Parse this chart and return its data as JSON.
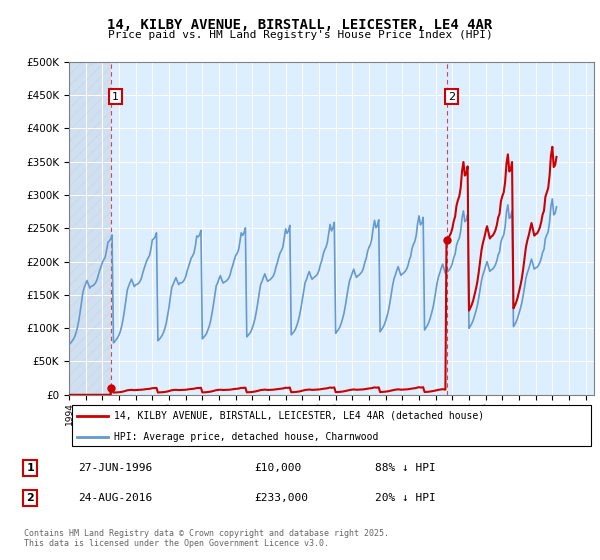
{
  "title": "14, KILBY AVENUE, BIRSTALL, LEICESTER, LE4 4AR",
  "subtitle": "Price paid vs. HM Land Registry's House Price Index (HPI)",
  "sale1_year": 1996.49,
  "sale1_price": 10000,
  "sale2_year": 2016.65,
  "sale2_price": 233000,
  "ylim": [
    0,
    500000
  ],
  "xlim": [
    1994.0,
    2025.5
  ],
  "yticks": [
    0,
    50000,
    100000,
    150000,
    200000,
    250000,
    300000,
    350000,
    400000,
    450000,
    500000
  ],
  "xticks": [
    1994,
    1995,
    1996,
    1997,
    1998,
    1999,
    2000,
    2001,
    2002,
    2003,
    2004,
    2005,
    2006,
    2007,
    2008,
    2009,
    2010,
    2011,
    2012,
    2013,
    2014,
    2015,
    2016,
    2017,
    2018,
    2019,
    2020,
    2021,
    2022,
    2023,
    2024,
    2025
  ],
  "hpi_index": [
    100.0,
    103.0,
    106.5,
    110.5,
    115.5,
    123.5,
    134.0,
    147.5,
    165.0,
    185.0,
    205.0,
    215.0,
    222.0,
    228.5,
    221.0,
    213.5,
    217.0,
    218.0,
    220.0,
    223.5,
    229.0,
    238.5,
    248.0,
    256.0,
    264.5,
    270.0,
    275.0,
    288.0,
    305.0,
    308.0,
    312.0,
    320.0,
    104.0,
    107.0,
    110.5,
    114.5,
    119.5,
    127.5,
    138.0,
    152.5,
    170.0,
    190.0,
    210.0,
    218.0,
    225.0,
    231.5,
    224.0,
    216.5,
    220.0,
    221.0,
    223.0,
    226.5,
    232.0,
    242.5,
    252.0,
    260.0,
    268.5,
    274.0,
    279.0,
    292.0,
    310.0,
    312.0,
    316.0,
    324.0,
    108.0,
    111.0,
    114.5,
    118.5,
    124.5,
    132.5,
    143.0,
    158.5,
    175.0,
    196.0,
    215.0,
    221.0,
    228.0,
    234.5,
    227.0,
    220.5,
    224.0,
    224.0,
    226.0,
    230.0,
    236.0,
    247.0,
    256.0,
    265.0,
    273.5,
    278.0,
    284.0,
    298.0,
    318.0,
    316.0,
    320.0,
    329.0,
    112.0,
    115.0,
    118.5,
    122.5,
    130.0,
    137.5,
    148.5,
    163.5,
    180.5,
    200.0,
    218.0,
    224.0,
    232.0,
    238.5,
    230.0,
    223.5,
    226.0,
    227.0,
    230.0,
    233.5,
    240.0,
    251.5,
    260.0,
    270.0,
    278.5,
    283.0,
    289.0,
    305.0,
    324.0,
    319.0,
    324.0,
    334.0,
    116.0,
    119.0,
    122.5,
    126.5,
    134.0,
    142.5,
    153.5,
    168.5,
    185.5,
    204.0,
    221.0,
    227.0,
    235.0,
    242.0,
    234.0,
    227.0,
    229.0,
    231.0,
    234.0,
    237.5,
    244.0,
    255.5,
    264.0,
    275.0,
    284.0,
    289.0,
    296.0,
    314.0,
    332.0,
    323.0,
    328.0,
    339.0,
    120.0,
    123.0,
    126.5,
    131.0,
    138.5,
    147.5,
    158.5,
    173.5,
    190.5,
    208.5,
    224.5,
    231.0,
    239.5,
    246.5,
    238.0,
    231.0,
    234.0,
    236.0,
    238.5,
    242.0,
    249.0,
    260.5,
    268.5,
    281.0,
    289.5,
    295.0,
    304.5,
    323.0,
    341.0,
    328.0,
    333.5,
    345.0,
    123.0,
    127.0,
    130.5,
    135.5,
    143.0,
    152.5,
    163.5,
    178.5,
    195.5,
    213.5,
    228.0,
    235.5,
    244.0,
    251.5,
    242.0,
    235.0,
    238.0,
    240.0,
    243.0,
    246.5,
    253.5,
    265.0,
    273.0,
    287.0,
    295.0,
    301.0,
    312.0,
    333.0,
    349.0,
    334.0,
    338.0,
    350.0,
    126.0,
    130.5,
    134.5,
    140.0,
    148.0,
    157.5,
    168.5,
    183.5,
    200.5,
    218.5,
    232.0,
    240.0,
    249.0,
    256.5,
    247.0,
    239.0,
    242.0,
    244.0,
    247.0,
    251.0,
    258.0,
    269.5,
    277.0,
    293.0,
    301.0,
    307.0,
    319.0,
    343.0,
    358.0,
    340.0,
    343.0,
    355.0,
    129.5,
    134.0,
    138.5,
    144.5,
    153.0,
    162.5,
    173.5,
    188.5,
    205.5,
    223.5,
    236.0,
    244.0,
    253.5,
    261.5,
    252.0,
    243.0,
    246.0,
    247.5,
    251.0,
    255.5,
    263.0,
    274.5,
    281.5,
    299.0,
    307.5,
    313.5,
    327.0,
    354.0,
    368.0,
    346.5,
    349.0,
    361.0,
    133.0,
    137.5,
    142.5,
    149.0,
    158.0,
    167.5,
    178.5,
    193.5,
    210.5,
    228.5,
    240.0,
    248.0,
    258.0,
    266.5,
    257.0,
    247.0,
    250.0,
    251.5,
    255.0,
    260.0,
    268.0,
    280.0,
    286.0,
    306.0,
    314.0,
    320.0,
    336.0,
    366.0,
    380.0,
    353.0,
    355.5,
    368.0,
    136.5,
    141.0,
    146.5,
    153.5,
    163.0,
    172.5,
    183.5,
    198.5,
    215.5,
    233.5,
    244.0,
    252.0,
    262.0,
    271.5,
    262.0,
    251.5,
    254.0,
    255.0,
    259.0,
    264.5,
    273.0,
    285.0,
    291.0,
    313.0,
    320.0,
    326.5,
    346.0,
    378.0,
    392.0,
    360.0,
    363.0,
    376.0
  ],
  "hpi_start_year": 1994.0,
  "hpi_points_per_year": 12,
  "hpi_base_index_at_sale1": 115.0,
  "hpi_base_index_at_sale2": 283.0,
  "label1": "14, KILBY AVENUE, BIRSTALL, LEICESTER, LE4 4AR (detached house)",
  "label2": "HPI: Average price, detached house, Charnwood",
  "legend1_date": "27-JUN-1996",
  "legend1_price": "£10,000",
  "legend1_hpi": "88% ↓ HPI",
  "legend2_date": "24-AUG-2016",
  "legend2_price": "£233,000",
  "legend2_hpi": "20% ↓ HPI",
  "footer": "Contains HM Land Registry data © Crown copyright and database right 2025.\nThis data is licensed under the Open Government Licence v3.0.",
  "color_red": "#cc0000",
  "color_blue": "#6699cc",
  "color_bg": "#ddeeff",
  "hatch_color": "#bbccdd"
}
